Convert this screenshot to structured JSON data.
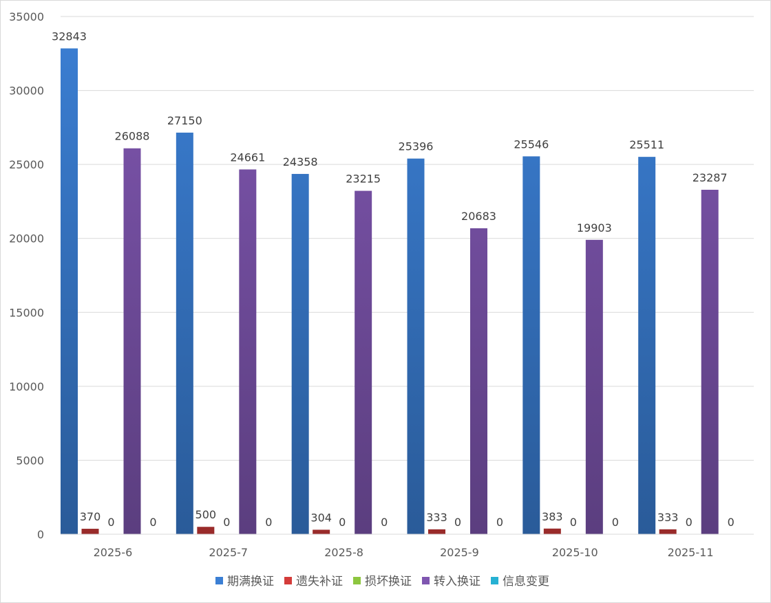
{
  "chart_data": {
    "type": "bar",
    "categories": [
      "2025-6",
      "2025-7",
      "2025-8",
      "2025-9",
      "2025-10",
      "2025-11"
    ],
    "series": [
      {
        "name": "期满换证",
        "values": [
          32843,
          27150,
          24358,
          25396,
          25546,
          25511
        ],
        "color": "#3b7fd4"
      },
      {
        "name": "遗失补证",
        "values": [
          370,
          500,
          304,
          333,
          383,
          333
        ],
        "color": "#d43c3a"
      },
      {
        "name": "损坏换证",
        "values": [
          0,
          0,
          0,
          0,
          0,
          0
        ],
        "color": "#8dc63f"
      },
      {
        "name": "转入换证",
        "values": [
          26088,
          24661,
          23215,
          20683,
          19903,
          23287
        ],
        "color": "#7f56b0"
      },
      {
        "name": "信息变更",
        "values": [
          0,
          0,
          0,
          0,
          0,
          0
        ],
        "color": "#26b1d3"
      }
    ],
    "ylim": [
      0,
      35000
    ],
    "yticks": [
      0,
      5000,
      10000,
      15000,
      20000,
      25000,
      30000,
      35000
    ],
    "grid": true,
    "legend": "bottom"
  }
}
